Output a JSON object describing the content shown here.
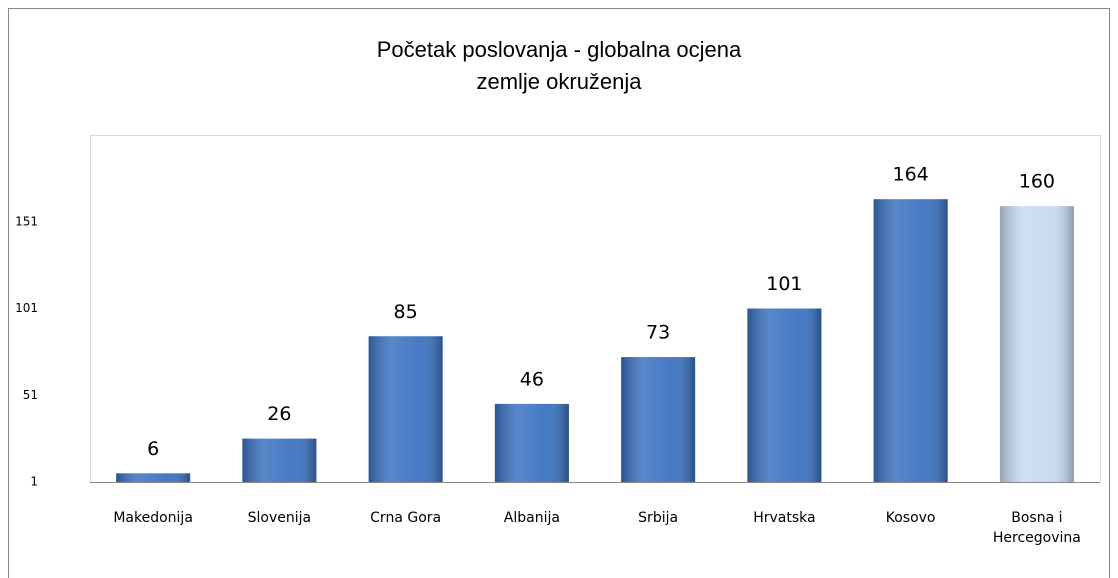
{
  "chart_data": {
    "type": "bar",
    "title": "Početak poslovanja - globalna ocjena zemlje okruženja",
    "categories": [
      "Makedonija",
      "Slovenija",
      "Crna Gora",
      "Albanija",
      "Srbija",
      "Hrvatska",
      "Kosovo",
      "Bosna i Hercegovina"
    ],
    "values": [
      6,
      26,
      85,
      46,
      73,
      101,
      164,
      160
    ],
    "colors": [
      "#3b72c0",
      "#3b72c0",
      "#3b72c0",
      "#3b72c0",
      "#3b72c0",
      "#3b72c0",
      "#3b72c0",
      "#c6d9f1"
    ],
    "ylim": [
      1,
      201
    ],
    "yticks": [
      1,
      51,
      101,
      151
    ],
    "grid": false
  }
}
